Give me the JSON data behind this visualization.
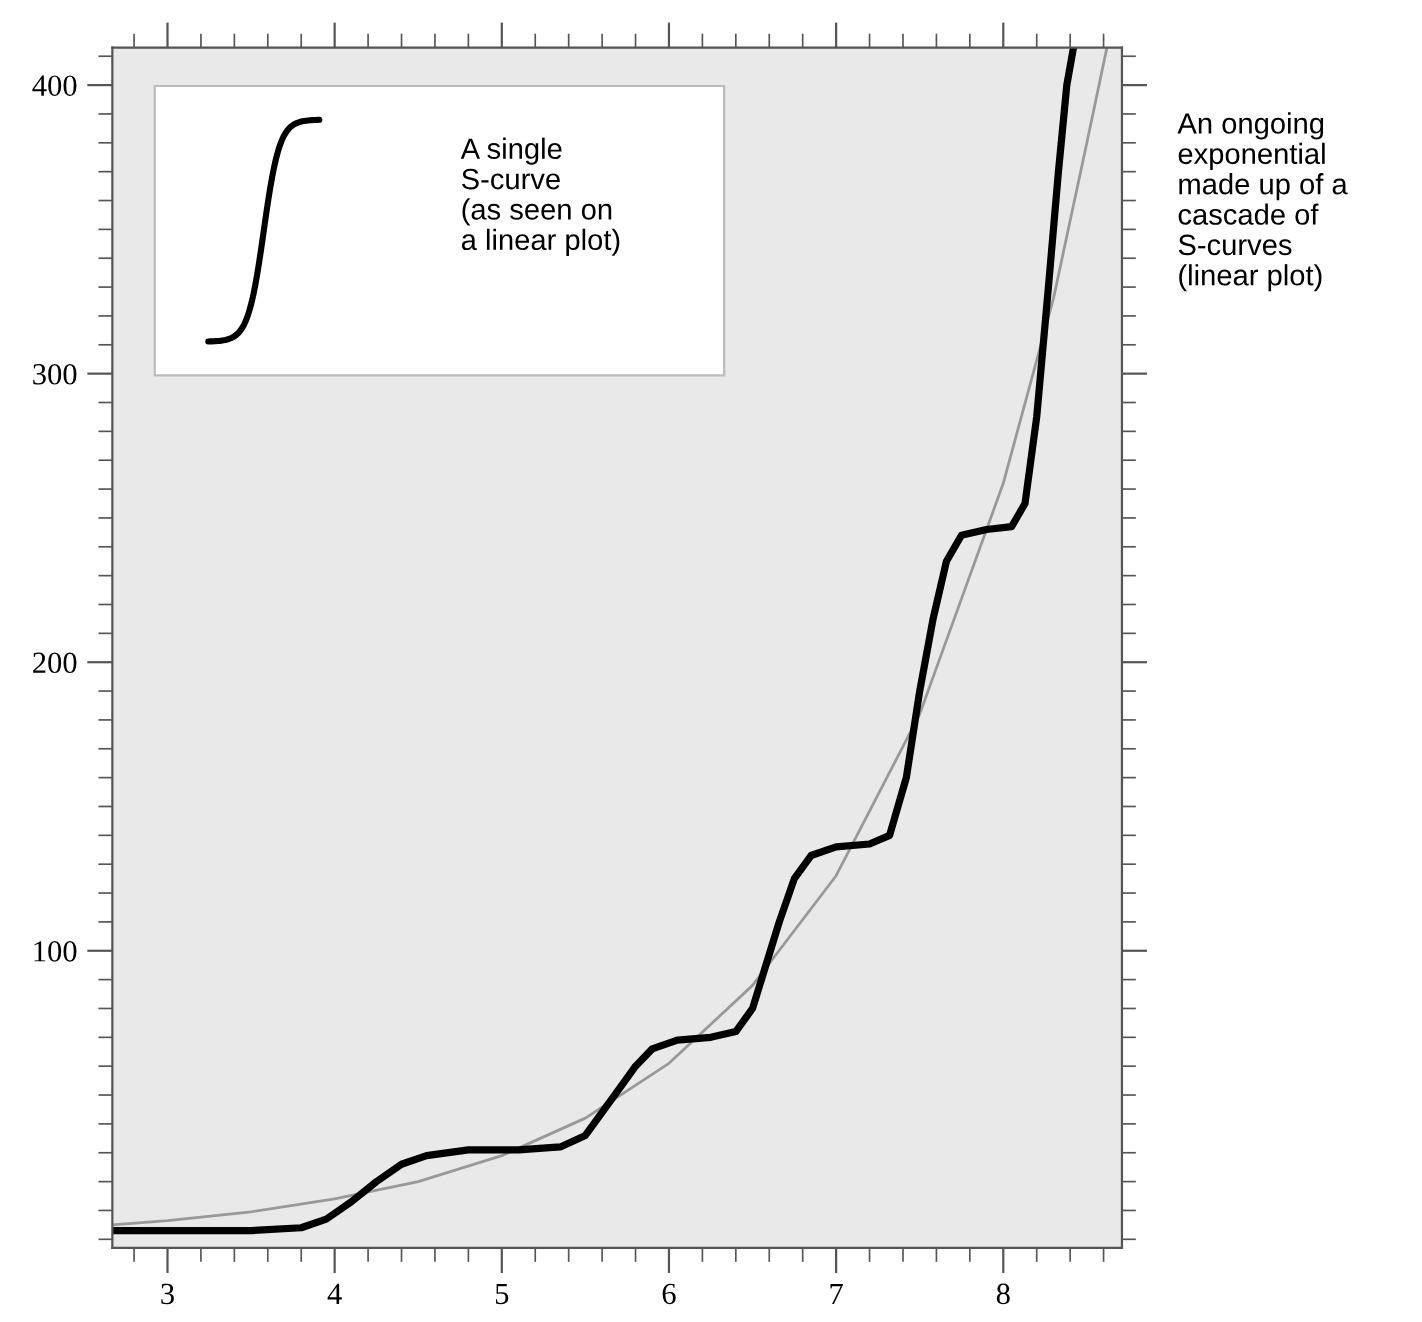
{
  "chart_data": {
    "type": "line",
    "annotations": [
      "A single\nS-curve\n(as seen on\na linear plot)",
      "An ongoing\nexponential\nmade up of a\ncascade of\nS-curves\n(linear plot)"
    ],
    "xlim": [
      2.67,
      8.71
    ],
    "ylim": [
      -3,
      413
    ],
    "xticks": [
      3,
      4,
      5,
      6,
      7,
      8,
      {
        "value": 2.8,
        "label": null
      },
      {
        "value": 3.2,
        "label": null
      },
      {
        "value": 3.4,
        "label": null
      },
      {
        "value": 3.6,
        "label": null
      },
      {
        "value": 3.8,
        "label": null
      },
      {
        "value": 4.2,
        "label": null
      },
      {
        "value": 4.4,
        "label": null
      },
      {
        "value": 4.6,
        "label": null
      },
      {
        "value": 4.8,
        "label": null
      },
      {
        "value": 5.2,
        "label": null
      },
      {
        "value": 5.4,
        "label": null
      },
      {
        "value": 5.6,
        "label": null
      },
      {
        "value": 5.8,
        "label": null
      },
      {
        "value": 6.2,
        "label": null
      },
      {
        "value": 6.4,
        "label": null
      },
      {
        "value": 6.6,
        "label": null
      },
      {
        "value": 6.8,
        "label": null
      },
      {
        "value": 7.2,
        "label": null
      },
      {
        "value": 7.4,
        "label": null
      },
      {
        "value": 7.6,
        "label": null
      },
      {
        "value": 7.8,
        "label": null
      },
      {
        "value": 8.2,
        "label": null
      },
      {
        "value": 8.4,
        "label": null
      },
      {
        "value": 8.6,
        "label": null
      }
    ],
    "yticks": [
      100,
      200,
      300,
      400,
      {
        "value": 0,
        "label": null
      },
      {
        "value": 10,
        "label": null
      },
      {
        "value": 20,
        "label": null
      },
      {
        "value": 30,
        "label": null
      },
      {
        "value": 40,
        "label": null
      },
      {
        "value": 50,
        "label": null
      },
      {
        "value": 60,
        "label": null
      },
      {
        "value": 70,
        "label": null
      },
      {
        "value": 80,
        "label": null
      },
      {
        "value": 90,
        "label": null
      },
      {
        "value": 110,
        "label": null
      },
      {
        "value": 120,
        "label": null
      },
      {
        "value": 130,
        "label": null
      },
      {
        "value": 140,
        "label": null
      },
      {
        "value": 150,
        "label": null
      },
      {
        "value": 160,
        "label": null
      },
      {
        "value": 170,
        "label": null
      },
      {
        "value": 180,
        "label": null
      },
      {
        "value": 190,
        "label": null
      },
      {
        "value": 210,
        "label": null
      },
      {
        "value": 220,
        "label": null
      },
      {
        "value": 230,
        "label": null
      },
      {
        "value": 240,
        "label": null
      },
      {
        "value": 250,
        "label": null
      },
      {
        "value": 260,
        "label": null
      },
      {
        "value": 270,
        "label": null
      },
      {
        "value": 280,
        "label": null
      },
      {
        "value": 290,
        "label": null
      },
      {
        "value": 310,
        "label": null
      },
      {
        "value": 320,
        "label": null
      },
      {
        "value": 330,
        "label": null
      },
      {
        "value": 340,
        "label": null
      },
      {
        "value": 350,
        "label": null
      },
      {
        "value": 360,
        "label": null
      },
      {
        "value": 370,
        "label": null
      },
      {
        "value": 380,
        "label": null
      },
      {
        "value": 390,
        "label": null
      },
      {
        "value": 410,
        "label": null
      }
    ],
    "grid": false,
    "series": [
      {
        "color": "#999999",
        "x": [
          2.67,
          3,
          3.5,
          4,
          4.5,
          5,
          5.5,
          6,
          6.5,
          7,
          7.5,
          8,
          8.3,
          8.5,
          8.62
        ],
        "values": [
          5,
          6.5,
          9.5,
          14,
          20,
          29,
          42,
          61,
          88,
          126,
          182,
          262,
          326,
          380,
          413
        ]
      },
      {
        "color": "#000000",
        "x": [
          2.67,
          3.0,
          3.5,
          3.8,
          3.95,
          4.1,
          4.25,
          4.4,
          4.55,
          4.8,
          5.1,
          5.35,
          5.5,
          5.6,
          5.7,
          5.8,
          5.9,
          6.05,
          6.25,
          6.4,
          6.5,
          6.58,
          6.66,
          6.75,
          6.85,
          7.0,
          7.2,
          7.32,
          7.42,
          7.5,
          7.58,
          7.66,
          7.75,
          7.9,
          8.05,
          8.13,
          8.2,
          8.27,
          8.33,
          8.38,
          8.42
        ],
        "values": [
          3,
          3,
          3,
          4,
          7,
          13,
          20,
          26,
          29,
          31,
          31,
          32,
          36,
          44,
          52,
          60,
          66,
          69,
          70,
          72,
          80,
          95,
          110,
          125,
          133,
          136,
          137,
          140,
          160,
          190,
          215,
          235,
          244,
          246,
          247,
          255,
          285,
          330,
          370,
          400,
          413
        ]
      }
    ]
  }
}
